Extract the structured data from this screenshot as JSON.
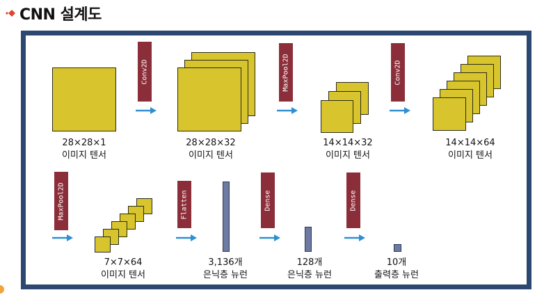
{
  "title": "CNN 설계도",
  "colors": {
    "frame": "#2c4870",
    "layer_tag": "#8b2e3a",
    "tensor": "#d8c52d",
    "neuron_bar": "#6d7ba3",
    "arrow": "#2f8fd0",
    "bullet": "#e0442c"
  },
  "layers": [
    {
      "name": "Conv2D"
    },
    {
      "name": "MaxPool2D"
    },
    {
      "name": "Conv2D"
    },
    {
      "name": "MaxPool2D"
    },
    {
      "name": "Flatten"
    },
    {
      "name": "Dense"
    },
    {
      "name": "Dense"
    }
  ],
  "nodes": [
    {
      "shape": "28×28×1",
      "caption": "이미지 텐서"
    },
    {
      "shape": "28×28×32",
      "caption": "이미지 텐서"
    },
    {
      "shape": "14×14×32",
      "caption": "이미지 텐서"
    },
    {
      "shape": "14×14×64",
      "caption": "이미지 텐서"
    },
    {
      "shape": "7×7×64",
      "caption": "이미지 텐서"
    },
    {
      "shape": "3,136개",
      "caption": "은닉층 뉴런"
    },
    {
      "shape": "128개",
      "caption": "은닉층 뉴런"
    },
    {
      "shape": "10개",
      "caption": "출력층 뉴런"
    }
  ]
}
